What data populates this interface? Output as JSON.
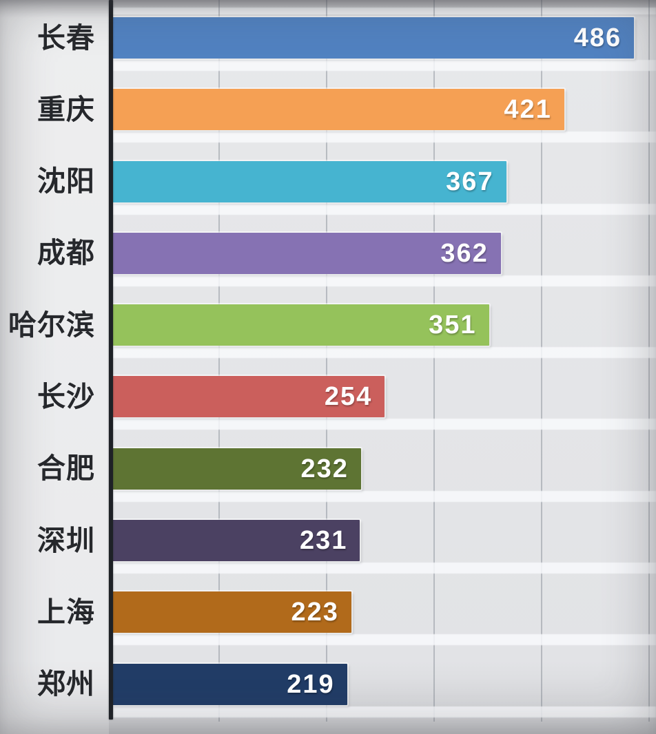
{
  "chart_data": {
    "type": "bar",
    "orientation": "horizontal",
    "title": "",
    "xlabel": "",
    "ylabel": "",
    "categories": [
      "长春",
      "重庆",
      "沈阳",
      "成都",
      "哈尔滨",
      "长沙",
      "合肥",
      "深圳",
      "上海",
      "郑州"
    ],
    "values": [
      486,
      421,
      367,
      362,
      351,
      254,
      232,
      231,
      223,
      219
    ],
    "bar_colors": [
      "#5182c1",
      "#f5a054",
      "#46b4d0",
      "#8672b3",
      "#95c25b",
      "#cb5f5c",
      "#5e7433",
      "#4b4162",
      "#b16a1b",
      "#213c66"
    ],
    "xlim": [
      0,
      500
    ],
    "gridline_values": [
      100,
      200,
      300,
      400,
      500
    ],
    "grid": true,
    "legend": "none",
    "value_label_position": "inside-end"
  },
  "style": {
    "background_color": "#e2e3e6",
    "axis_color": "#1e2126",
    "gridline_color": "#6e7682",
    "category_label_color": "#26282c",
    "value_label_color": "#ffffff"
  }
}
